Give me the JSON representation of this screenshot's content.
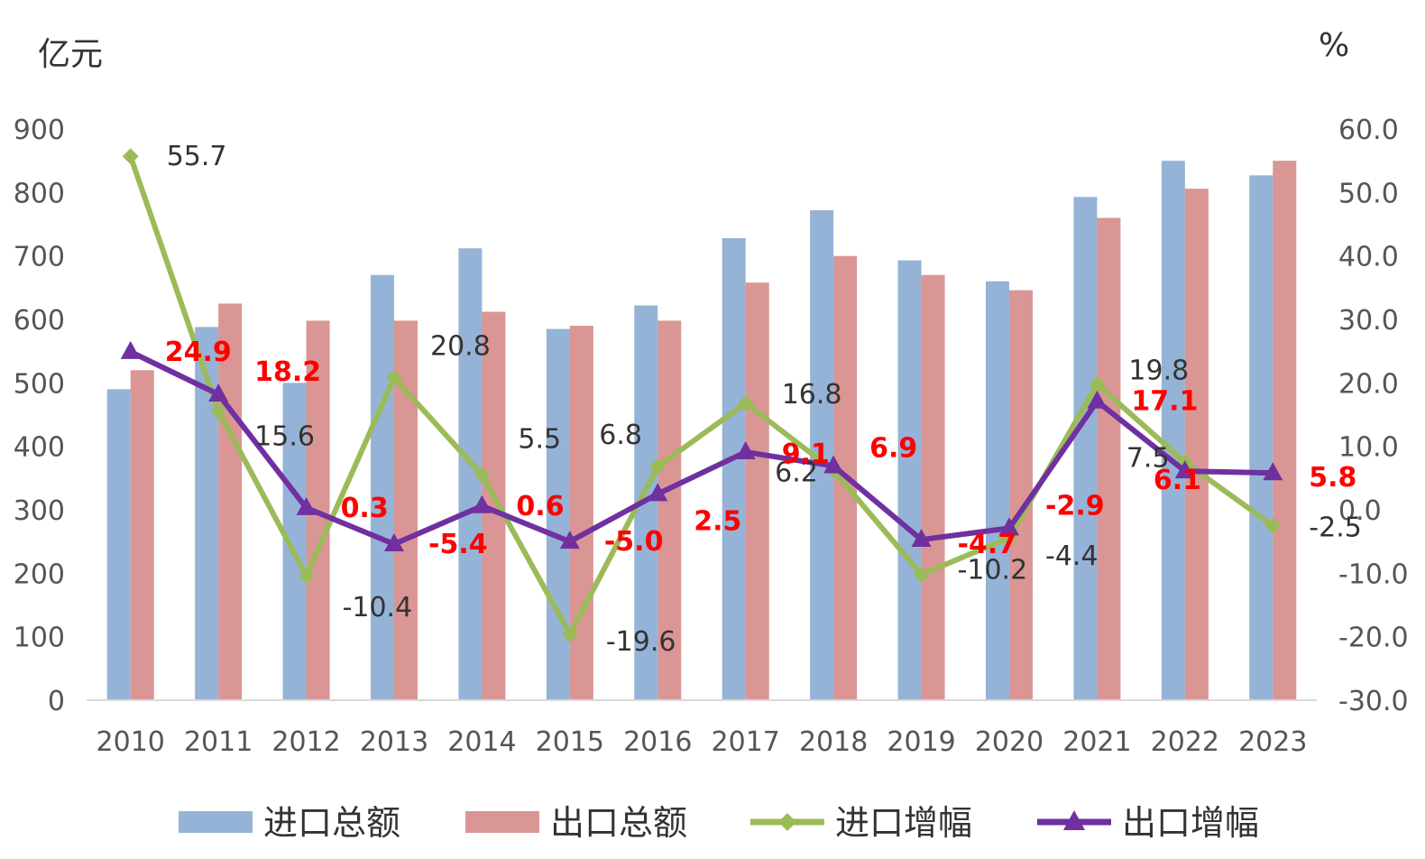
{
  "chart_data": {
    "type": "bar",
    "categories": [
      "2010",
      "2011",
      "2012",
      "2013",
      "2014",
      "2015",
      "2016",
      "2017",
      "2018",
      "2019",
      "2020",
      "2021",
      "2022",
      "2023"
    ],
    "y_left": {
      "unit": "亿元",
      "ylim": [
        0,
        900
      ],
      "ticks": [
        "0",
        "100",
        "200",
        "300",
        "400",
        "500",
        "600",
        "700",
        "800",
        "900"
      ]
    },
    "y_right": {
      "unit": "%",
      "ylim": [
        -30,
        60
      ],
      "ticks": [
        "-30.0",
        "-20.0",
        "-10.0",
        "0.0",
        "10.0",
        "20.0",
        "30.0",
        "40.0",
        "50.0",
        "60.0"
      ]
    },
    "series": [
      {
        "name": "进口总额",
        "type": "bar",
        "axis": "left",
        "color": "#95b3d7",
        "values": [
          490,
          588,
          500,
          670,
          712,
          585,
          622,
          728,
          772,
          693,
          660,
          793,
          850,
          827
        ]
      },
      {
        "name": "出口总额",
        "type": "bar",
        "axis": "left",
        "color": "#d99694",
        "values": [
          520,
          625,
          598,
          598,
          612,
          590,
          598,
          658,
          700,
          670,
          646,
          760,
          806,
          850
        ]
      },
      {
        "name": "进口增幅",
        "type": "line",
        "axis": "right",
        "color": "#9bbb59",
        "marker": "diamond",
        "values": [
          55.7,
          15.6,
          -10.4,
          20.8,
          5.5,
          -19.6,
          6.8,
          16.8,
          6.2,
          -10.2,
          -4.4,
          19.8,
          7.5,
          -2.5
        ],
        "labels": [
          "55.7",
          "15.6",
          "-10.4",
          "20.8",
          "5.5",
          "-19.6",
          "6.8",
          "16.8",
          "6.2",
          "-10.2",
          "-4.4",
          "19.8",
          "7.5",
          "-2.5"
        ]
      },
      {
        "name": "出口增幅",
        "type": "line",
        "axis": "right",
        "color": "#7030a0",
        "marker": "triangle",
        "values": [
          24.9,
          18.2,
          0.3,
          -5.4,
          0.6,
          -5.0,
          2.5,
          9.1,
          6.9,
          -4.7,
          -2.9,
          17.1,
          6.1,
          5.8
        ],
        "labels": [
          "24.9",
          "18.2",
          "0.3",
          "-5.4",
          "0.6",
          "-5.0",
          "2.5",
          "9.1",
          "6.9",
          "-4.7",
          "-2.9",
          "17.1",
          "6.1",
          "5.8"
        ]
      }
    ],
    "grid": false,
    "legend_position": "bottom"
  }
}
